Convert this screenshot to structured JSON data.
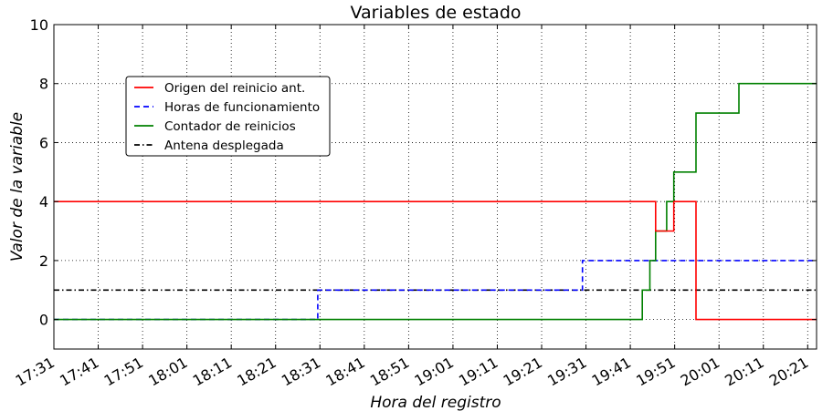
{
  "chart_data": {
    "type": "line",
    "step": true,
    "title": "Variables de estado",
    "xlabel": "Hora del registro",
    "ylabel": "Valor de la variable",
    "x_tick_labels": [
      "17:31",
      "17:41",
      "17:51",
      "18:01",
      "18:11",
      "18:21",
      "18:31",
      "18:41",
      "18:51",
      "19:01",
      "19:11",
      "19:21",
      "19:31",
      "19:41",
      "19:51",
      "20:01",
      "20:11",
      "20:21"
    ],
    "x_tick_minutes": [
      1051,
      1061,
      1071,
      1081,
      1091,
      1101,
      1111,
      1121,
      1131,
      1141,
      1151,
      1161,
      1171,
      1181,
      1191,
      1201,
      1211,
      1221
    ],
    "xlim_minutes": [
      1051,
      1223
    ],
    "ylim": [
      -1,
      10
    ],
    "y_ticks": [
      0,
      2,
      4,
      6,
      8,
      10
    ],
    "grid": true,
    "legend_position": "upper-left",
    "series": [
      {
        "name": "Origen del reinicio ant.",
        "color": "#ff0000",
        "style": "solid",
        "points": [
          [
            1051,
            4
          ],
          [
            1186.7,
            4
          ],
          [
            1186.7,
            3
          ],
          [
            1190.8,
            3
          ],
          [
            1190.8,
            4
          ],
          [
            1195.8,
            4
          ],
          [
            1195.8,
            0
          ],
          [
            1223,
            0
          ]
        ]
      },
      {
        "name": "Horas de funcionamiento",
        "color": "#0000ff",
        "style": "dashed",
        "points": [
          [
            1051,
            0
          ],
          [
            1110.5,
            0
          ],
          [
            1110.5,
            1
          ],
          [
            1170.2,
            1
          ],
          [
            1170.2,
            2
          ],
          [
            1223,
            2
          ]
        ]
      },
      {
        "name": "Contador de reinicios",
        "color": "#008000",
        "style": "solid",
        "points": [
          [
            1051,
            0
          ],
          [
            1183.7,
            0
          ],
          [
            1183.7,
            1
          ],
          [
            1185.4,
            1
          ],
          [
            1185.4,
            2
          ],
          [
            1186.7,
            2
          ],
          [
            1186.7,
            3
          ],
          [
            1189.2,
            3
          ],
          [
            1189.2,
            4
          ],
          [
            1190.8,
            4
          ],
          [
            1190.8,
            5
          ],
          [
            1195.8,
            5
          ],
          [
            1195.8,
            7
          ],
          [
            1205.5,
            7
          ],
          [
            1205.5,
            8
          ],
          [
            1223,
            8
          ]
        ]
      },
      {
        "name": "Antena desplegada",
        "color": "#000000",
        "style": "dashdot",
        "points": [
          [
            1051,
            1
          ],
          [
            1223,
            1
          ]
        ]
      }
    ]
  }
}
